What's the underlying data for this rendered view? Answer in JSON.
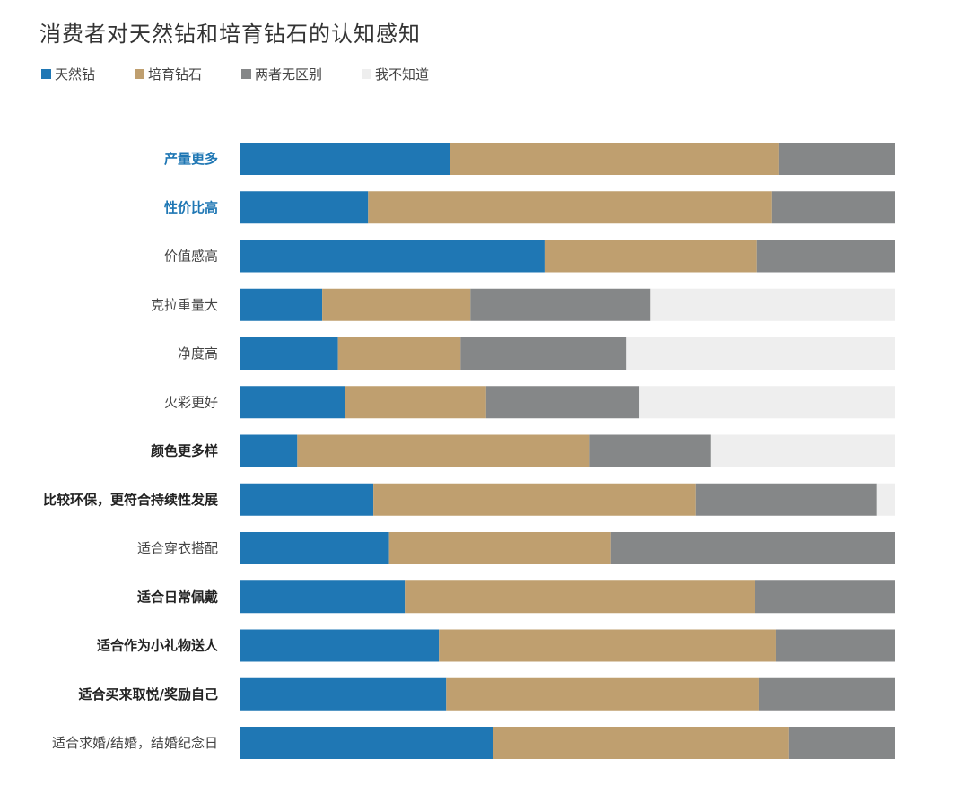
{
  "chart_data": {
    "type": "bar",
    "orientation": "horizontal",
    "stacked": true,
    "normalized_percent": true,
    "title": "消费者对天然钻和培育钻石的认知感知",
    "legend_position": "top-left",
    "grid": false,
    "xlim": [
      0,
      100
    ],
    "categories": [
      "产量更多",
      "性价比高",
      "价值感高",
      "克拉重量大",
      "净度高",
      "火彩更好",
      "颜色更多样",
      "比较环保，更符合持续性发展",
      "适合穿衣搭配",
      "适合日常佩戴",
      "适合作为小礼物送人",
      "适合买来取悦/奖励自己",
      "适合求婚/结婚，结婚纪念日"
    ],
    "label_style": [
      "highlight",
      "highlight",
      "normal",
      "normal",
      "normal",
      "normal",
      "bold",
      "bold",
      "normal",
      "bold",
      "bold",
      "bold",
      "normal"
    ],
    "series": [
      {
        "name": "天然钻",
        "color": "#1f77b4",
        "values": [
          32.1,
          19.6,
          46.5,
          12.6,
          15.0,
          16.1,
          8.8,
          20.4,
          22.8,
          25.2,
          30.4,
          31.5,
          38.6
        ]
      },
      {
        "name": "培育钻石",
        "color": "#bf9f6f",
        "values": [
          50.1,
          61.5,
          32.4,
          22.6,
          18.7,
          21.5,
          44.6,
          49.2,
          33.8,
          53.4,
          51.4,
          47.7,
          45.1
        ]
      },
      {
        "name": "两者无区别",
        "color": "#858788",
        "values": [
          17.8,
          18.9,
          21.1,
          27.5,
          25.3,
          23.3,
          18.4,
          27.5,
          43.4,
          21.4,
          18.2,
          20.8,
          16.3
        ]
      },
      {
        "name": "我不知道",
        "color": "#eeeeee",
        "values": [
          0,
          0,
          0,
          37.3,
          41.0,
          39.1,
          28.2,
          2.9,
          0,
          0,
          0,
          0,
          0
        ]
      }
    ]
  }
}
